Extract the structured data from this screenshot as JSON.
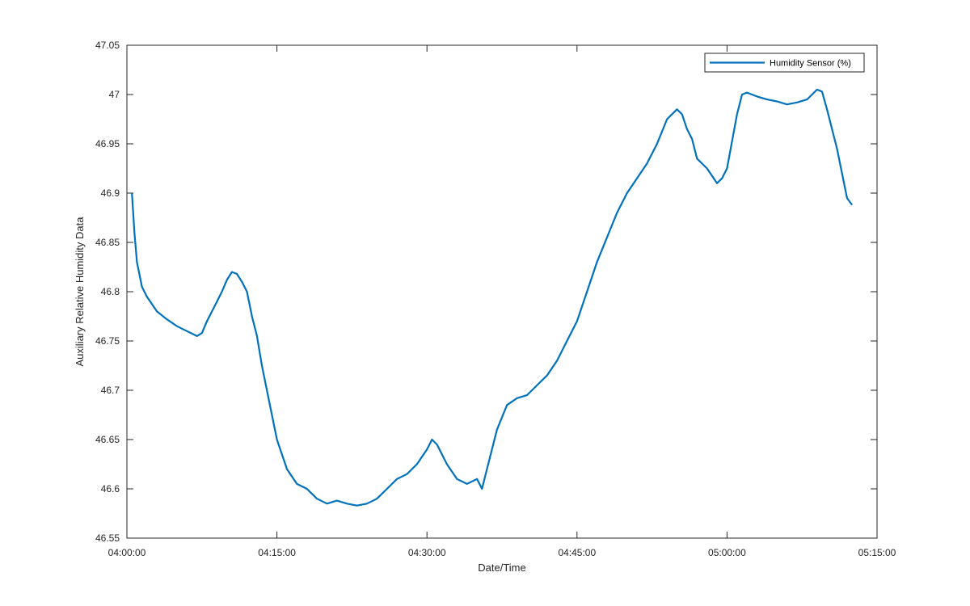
{
  "chart_data": {
    "type": "line",
    "title": "",
    "xlabel": "Date/Time",
    "ylabel": "Auxiliary Relative Humidity Data",
    "xlim": [
      "04:00:00",
      "05:15:00"
    ],
    "ylim": [
      46.55,
      47.05
    ],
    "x_ticks": [
      "04:00:00",
      "04:15:00",
      "04:30:00",
      "04:45:00",
      "05:00:00",
      "05:15:00"
    ],
    "y_ticks": [
      "46.55",
      "46.6",
      "46.65",
      "46.7",
      "46.75",
      "46.8",
      "46.85",
      "46.9",
      "46.95",
      "47",
      "47.05"
    ],
    "grid": false,
    "legend": {
      "position": "top-right",
      "entries": [
        "Humidity Sensor (%)"
      ]
    },
    "series": [
      {
        "name": "Humidity Sensor (%)",
        "color": "#0072BD",
        "x": [
          "04:00:30",
          "04:00:45",
          "04:01:00",
          "04:01:30",
          "04:02:00",
          "04:03:00",
          "04:04:00",
          "04:05:00",
          "04:06:00",
          "04:07:00",
          "04:07:30",
          "04:08:00",
          "04:09:00",
          "04:09:30",
          "04:10:00",
          "04:10:30",
          "04:11:00",
          "04:11:30",
          "04:12:00",
          "04:12:30",
          "04:13:00",
          "04:13:30",
          "04:14:00",
          "04:15:00",
          "04:16:00",
          "04:17:00",
          "04:18:00",
          "04:19:00",
          "04:20:00",
          "04:21:00",
          "04:22:00",
          "04:23:00",
          "04:24:00",
          "04:25:00",
          "04:26:00",
          "04:27:00",
          "04:28:00",
          "04:29:00",
          "04:30:00",
          "04:30:30",
          "04:31:00",
          "04:32:00",
          "04:33:00",
          "04:34:00",
          "04:35:00",
          "04:35:30",
          "04:36:00",
          "04:37:00",
          "04:38:00",
          "04:39:00",
          "04:40:00",
          "04:41:00",
          "04:42:00",
          "04:43:00",
          "04:44:00",
          "04:45:00",
          "04:46:00",
          "04:47:00",
          "04:48:00",
          "04:49:00",
          "04:50:00",
          "04:51:00",
          "04:52:00",
          "04:53:00",
          "04:54:00",
          "04:55:00",
          "04:55:30",
          "04:56:00",
          "04:56:30",
          "04:57:00",
          "04:58:00",
          "04:59:00",
          "04:59:30",
          "05:00:00",
          "05:01:00",
          "05:01:30",
          "05:02:00",
          "05:03:00",
          "05:04:00",
          "05:05:00",
          "05:06:00",
          "05:07:00",
          "05:08:00",
          "05:09:00",
          "05:09:30",
          "05:10:00",
          "05:11:00",
          "05:11:30",
          "05:12:00",
          "05:12:30"
        ],
        "y": [
          46.9,
          46.86,
          46.83,
          46.805,
          46.795,
          46.78,
          46.772,
          46.765,
          46.76,
          46.755,
          46.758,
          46.77,
          46.79,
          46.8,
          46.812,
          46.82,
          46.818,
          46.81,
          46.8,
          46.775,
          46.755,
          46.725,
          46.7,
          46.65,
          46.62,
          46.605,
          46.6,
          46.59,
          46.585,
          46.588,
          46.585,
          46.583,
          46.585,
          46.59,
          46.6,
          46.61,
          46.615,
          46.625,
          46.64,
          46.65,
          46.645,
          46.625,
          46.61,
          46.605,
          46.61,
          46.6,
          46.62,
          46.66,
          46.685,
          46.692,
          46.695,
          46.705,
          46.715,
          46.73,
          46.75,
          46.77,
          46.8,
          46.83,
          46.855,
          46.88,
          46.9,
          46.915,
          46.93,
          46.95,
          46.975,
          46.985,
          46.98,
          46.965,
          46.955,
          46.935,
          46.925,
          46.91,
          46.915,
          46.925,
          46.98,
          47.0,
          47.002,
          46.998,
          46.995,
          46.993,
          46.99,
          46.992,
          46.995,
          47.005,
          47.003,
          46.985,
          46.945,
          46.92,
          46.895,
          46.888
        ]
      }
    ]
  }
}
